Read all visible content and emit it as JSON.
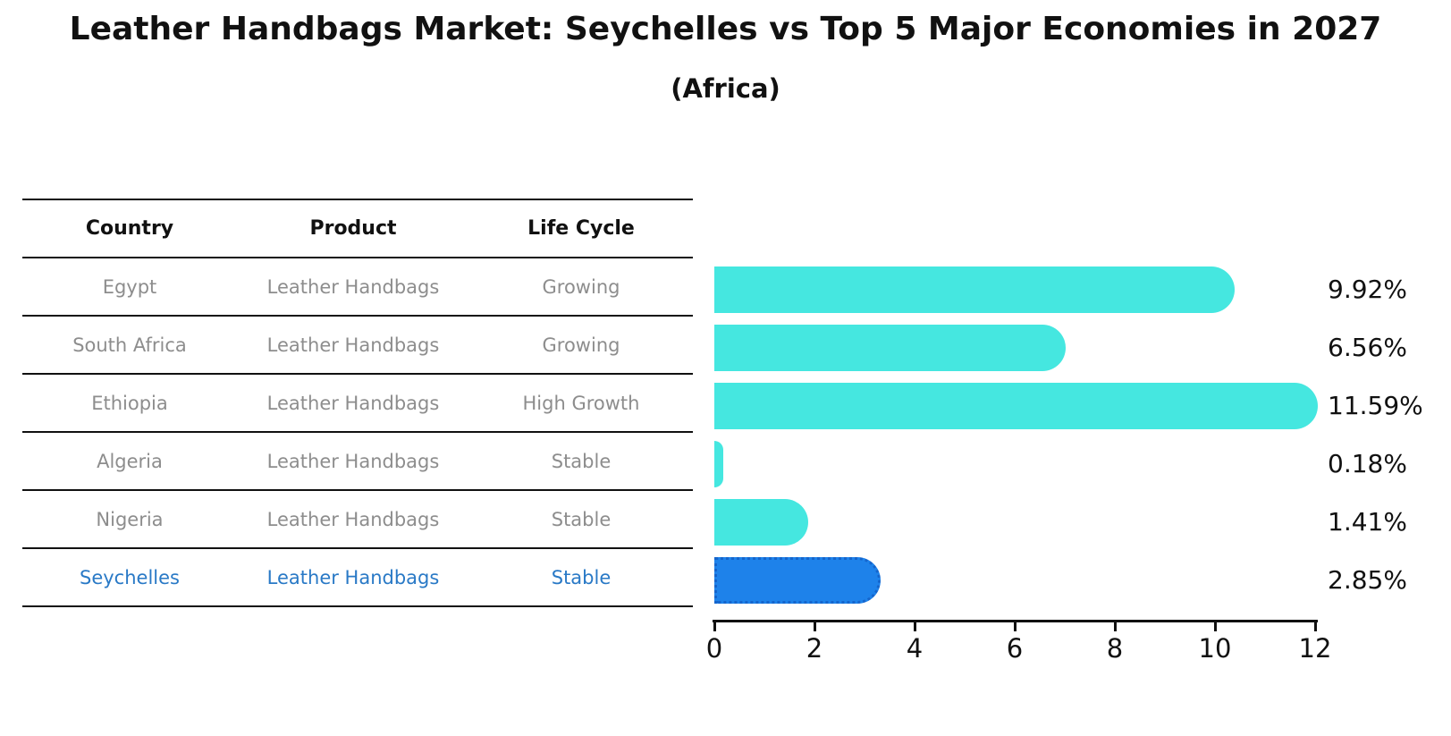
{
  "title": "Leather Handbags Market: Seychelles vs Top 5 Major Economies in 2027",
  "subtitle": "(Africa)",
  "table": {
    "headers": [
      "Country",
      "Product",
      "Life Cycle"
    ],
    "rows": [
      {
        "country": "Egypt",
        "product": "Leather Handbags",
        "life_cycle": "Growing",
        "highlight": false
      },
      {
        "country": "South Africa",
        "product": "Leather Handbags",
        "life_cycle": "Growing",
        "highlight": false
      },
      {
        "country": "Ethiopia",
        "product": "Leather Handbags",
        "life_cycle": "High Growth",
        "highlight": false
      },
      {
        "country": "Algeria",
        "product": "Leather Handbags",
        "life_cycle": "Stable",
        "highlight": false
      },
      {
        "country": "Nigeria",
        "product": "Leather Handbags",
        "life_cycle": "Stable",
        "highlight": false
      },
      {
        "country": "Seychelles",
        "product": "Leather Handbags",
        "life_cycle": "Stable",
        "highlight": true
      }
    ]
  },
  "chart_data": {
    "type": "bar",
    "orientation": "horizontal",
    "title": "Leather Handbags Market: Seychelles vs Top 5 Major Economies in 2027 (Africa)",
    "categories": [
      "Egypt",
      "South Africa",
      "Ethiopia",
      "Algeria",
      "Nigeria",
      "Seychelles"
    ],
    "values": [
      9.92,
      6.56,
      11.59,
      0.18,
      1.41,
      2.85
    ],
    "value_labels": [
      "9.92%",
      "6.56%",
      "11.59%",
      "0.18%",
      "1.41%",
      "2.85%"
    ],
    "xlabel": "",
    "ylabel": "",
    "xlim": [
      0,
      12
    ],
    "xticks": [
      0,
      2,
      4,
      6,
      8,
      10,
      12
    ],
    "grid": false,
    "legend_position": "none",
    "bar_color": "#45E7E0",
    "highlight_index": 5,
    "highlight_color": "#1E82EA",
    "highlight_border_color": "#1565CC"
  },
  "colors": {
    "text_primary": "#111111",
    "text_muted": "#8d8d8d",
    "text_highlight": "#2979c6",
    "axis": "#111111"
  }
}
